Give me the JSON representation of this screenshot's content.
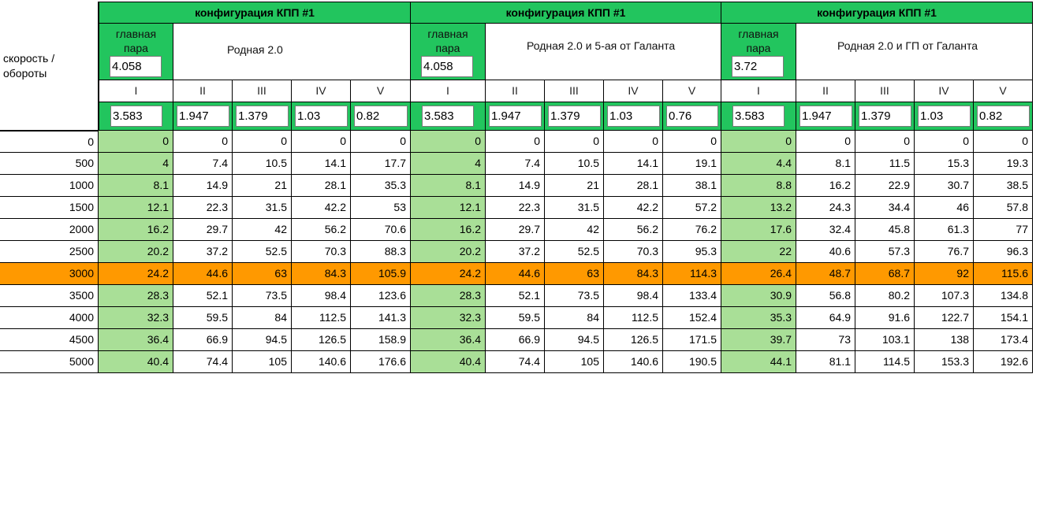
{
  "side_label": "скорость / обороты",
  "configs": [
    {
      "title": "конфигурация КПП #1",
      "gp_label": "главная пара",
      "gp_value": "4.058",
      "name": "Родная 2.0",
      "gear_labels": [
        "I",
        "II",
        "III",
        "IV",
        "V"
      ],
      "ratios": [
        "3.583",
        "1.947",
        "1.379",
        "1.03",
        "0.82"
      ]
    },
    {
      "title": "конфигурация КПП #1",
      "gp_label": "главная пара",
      "gp_value": "4.058",
      "name": "Родная 2.0 и 5-ая от Галанта",
      "gear_labels": [
        "I",
        "II",
        "III",
        "IV",
        "V"
      ],
      "ratios": [
        "3.583",
        "1.947",
        "1.379",
        "1.03",
        "0.76"
      ]
    },
    {
      "title": "конфигурация КПП #1",
      "gp_label": "главная пара",
      "gp_value": "3.72",
      "name": "Родная 2.0  и ГП от Галанта",
      "gear_labels": [
        "I",
        "II",
        "III",
        "IV",
        "V"
      ],
      "ratios": [
        "3.583",
        "1.947",
        "1.379",
        "1.03",
        "0.82"
      ]
    }
  ],
  "highlight_rpm": "3000",
  "rows": [
    {
      "rpm": "0",
      "speeds": [
        "0",
        "0",
        "0",
        "0",
        "0",
        "0",
        "0",
        "0",
        "0",
        "0",
        "0",
        "0",
        "0",
        "0",
        "0"
      ]
    },
    {
      "rpm": "500",
      "speeds": [
        "4",
        "7.4",
        "10.5",
        "14.1",
        "17.7",
        "4",
        "7.4",
        "10.5",
        "14.1",
        "19.1",
        "4.4",
        "8.1",
        "11.5",
        "15.3",
        "19.3"
      ]
    },
    {
      "rpm": "1000",
      "speeds": [
        "8.1",
        "14.9",
        "21",
        "28.1",
        "35.3",
        "8.1",
        "14.9",
        "21",
        "28.1",
        "38.1",
        "8.8",
        "16.2",
        "22.9",
        "30.7",
        "38.5"
      ]
    },
    {
      "rpm": "1500",
      "speeds": [
        "12.1",
        "22.3",
        "31.5",
        "42.2",
        "53",
        "12.1",
        "22.3",
        "31.5",
        "42.2",
        "57.2",
        "13.2",
        "24.3",
        "34.4",
        "46",
        "57.8"
      ]
    },
    {
      "rpm": "2000",
      "speeds": [
        "16.2",
        "29.7",
        "42",
        "56.2",
        "70.6",
        "16.2",
        "29.7",
        "42",
        "56.2",
        "76.2",
        "17.6",
        "32.4",
        "45.8",
        "61.3",
        "77"
      ]
    },
    {
      "rpm": "2500",
      "speeds": [
        "20.2",
        "37.2",
        "52.5",
        "70.3",
        "88.3",
        "20.2",
        "37.2",
        "52.5",
        "70.3",
        "95.3",
        "22",
        "40.6",
        "57.3",
        "76.7",
        "96.3"
      ]
    },
    {
      "rpm": "3000",
      "speeds": [
        "24.2",
        "44.6",
        "63",
        "84.3",
        "105.9",
        "24.2",
        "44.6",
        "63",
        "84.3",
        "114.3",
        "26.4",
        "48.7",
        "68.7",
        "92",
        "115.6"
      ]
    },
    {
      "rpm": "3500",
      "speeds": [
        "28.3",
        "52.1",
        "73.5",
        "98.4",
        "123.6",
        "28.3",
        "52.1",
        "73.5",
        "98.4",
        "133.4",
        "30.9",
        "56.8",
        "80.2",
        "107.3",
        "134.8"
      ]
    },
    {
      "rpm": "4000",
      "speeds": [
        "32.3",
        "59.5",
        "84",
        "112.5",
        "141.3",
        "32.3",
        "59.5",
        "84",
        "112.5",
        "152.4",
        "35.3",
        "64.9",
        "91.6",
        "122.7",
        "154.1"
      ]
    },
    {
      "rpm": "4500",
      "speeds": [
        "36.4",
        "66.9",
        "94.5",
        "126.5",
        "158.9",
        "36.4",
        "66.9",
        "94.5",
        "126.5",
        "171.5",
        "39.7",
        "73",
        "103.1",
        "138",
        "173.4"
      ]
    },
    {
      "rpm": "5000",
      "speeds": [
        "40.4",
        "74.4",
        "105",
        "140.6",
        "176.6",
        "40.4",
        "74.4",
        "105",
        "140.6",
        "190.5",
        "44.1",
        "81.1",
        "114.5",
        "153.3",
        "192.6"
      ]
    }
  ],
  "colors": {
    "header_green": "#22c55e",
    "first_gear_col": "#a9df97",
    "highlight_row": "#ff9900"
  }
}
